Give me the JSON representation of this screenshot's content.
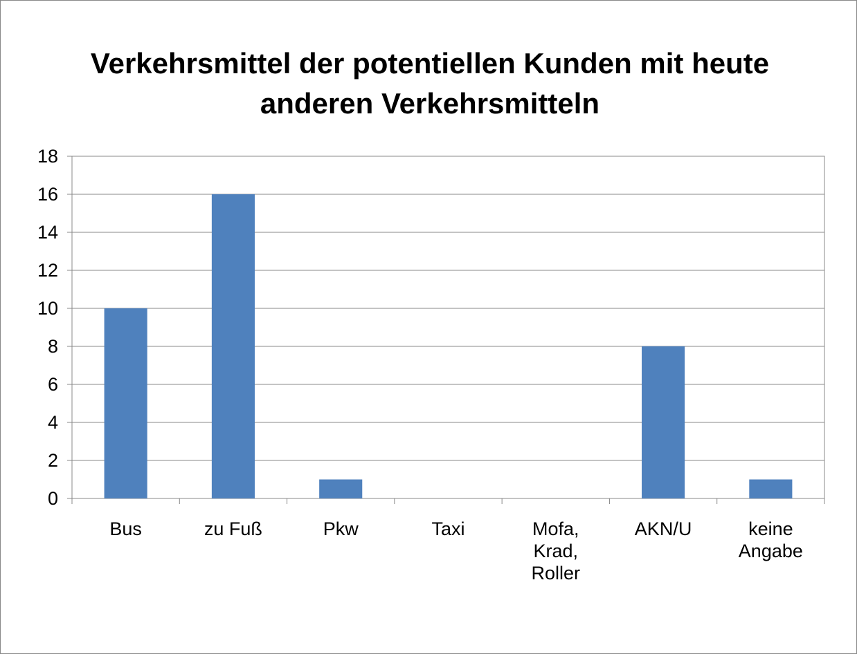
{
  "chart_data": {
    "type": "bar",
    "title": "Verkehrsmittel der potentiellen Kunden mit heute anderen Verkehrsmitteln",
    "categories": [
      "Bus",
      "zu Fuß",
      "Pkw",
      "Taxi",
      "Mofa, Krad, Roller",
      "AKN/U",
      "keine Angabe"
    ],
    "values": [
      10,
      16,
      1,
      0,
      0,
      8,
      1
    ],
    "color": "#4f81bd",
    "ylim": [
      0,
      18
    ],
    "yticks": [
      0,
      2,
      4,
      6,
      8,
      10,
      12,
      14,
      16,
      18
    ],
    "grid": true
  }
}
